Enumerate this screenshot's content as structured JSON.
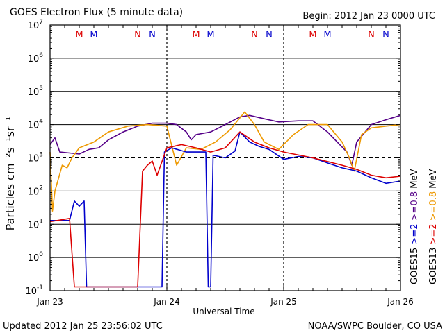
{
  "title": "GOES Electron Flux (5 minute data)",
  "begin_label": "Begin: 2012 Jan 23 0000 UTC",
  "updated_label": "Updated 2012 Jan 25 23:56:02 UTC",
  "credit_label": "NOAA/SWPC Boulder, CO USA",
  "chart_data": {
    "type": "line",
    "xlabel": "Universal Time",
    "ylabel": "Particles cm⁻²s⁻¹sr⁻¹",
    "x_range": [
      "2012-01-23T00:00",
      "2012-01-26T00:00"
    ],
    "x_ticks": [
      "Jan 23",
      "Jan 24",
      "Jan 25",
      "Jan 26"
    ],
    "y_scale": "log",
    "y_range": [
      0.1,
      10000000
    ],
    "y_ticks": [
      {
        "base": "10",
        "exp": "7"
      },
      {
        "base": "10",
        "exp": "6"
      },
      {
        "base": "10",
        "exp": "5"
      },
      {
        "base": "10",
        "exp": "4"
      },
      {
        "base": "10",
        "exp": "3"
      },
      {
        "base": "10",
        "exp": "2"
      },
      {
        "base": "10",
        "exp": "1"
      },
      {
        "base": "10",
        "exp": "0"
      },
      {
        "base": "10",
        "exp": "-1"
      }
    ],
    "grid": "horizontal",
    "threshold_line": 1000,
    "markers": [
      {
        "label": "M",
        "x": "2012-01-23T06:00",
        "color": "#dd0000"
      },
      {
        "label": "M",
        "x": "2012-01-23T09:00",
        "color": "#0000cc"
      },
      {
        "label": "N",
        "x": "2012-01-23T18:00",
        "color": "#dd0000"
      },
      {
        "label": "N",
        "x": "2012-01-23T21:00",
        "color": "#0000cc"
      },
      {
        "label": "M",
        "x": "2012-01-24T06:00",
        "color": "#dd0000"
      },
      {
        "label": "M",
        "x": "2012-01-24T09:00",
        "color": "#0000cc"
      },
      {
        "label": "N",
        "x": "2012-01-24T18:00",
        "color": "#dd0000"
      },
      {
        "label": "N",
        "x": "2012-01-24T21:00",
        "color": "#0000cc"
      },
      {
        "label": "M",
        "x": "2012-01-25T06:00",
        "color": "#dd0000"
      },
      {
        "label": "M",
        "x": "2012-01-25T09:00",
        "color": "#0000cc"
      },
      {
        "label": "N",
        "x": "2012-01-25T18:00",
        "color": "#dd0000"
      },
      {
        "label": "N",
        "x": "2012-01-25T21:00",
        "color": "#0000cc"
      }
    ],
    "right_legend": [
      {
        "text": "GOES15",
        "color": "#000000"
      },
      {
        "text": ">=2",
        "color": "#0000cc"
      },
      {
        "text": ">=0.8",
        "color": "#550088"
      },
      {
        "text": "MeV",
        "color": "#000000"
      },
      {
        "text": "GOES13",
        "color": "#000000"
      },
      {
        "text": ">=2",
        "color": "#dd0000"
      },
      {
        "text": ">=0.8",
        "color": "#ee9900"
      },
      {
        "text": "MeV",
        "color": "#000000"
      }
    ],
    "series": [
      {
        "name": "GOES15 >=0.8 MeV",
        "color": "#550088",
        "points": [
          [
            "2012-01-23T00:00",
            2500
          ],
          [
            "2012-01-23T01:00",
            4000
          ],
          [
            "2012-01-23T02:00",
            1500
          ],
          [
            "2012-01-23T04:00",
            1400
          ],
          [
            "2012-01-23T06:00",
            1300
          ],
          [
            "2012-01-23T08:00",
            1800
          ],
          [
            "2012-01-23T10:00",
            2000
          ],
          [
            "2012-01-23T12:00",
            3500
          ],
          [
            "2012-01-23T15:00",
            6000
          ],
          [
            "2012-01-23T18:00",
            9000
          ],
          [
            "2012-01-23T21:00",
            11000
          ],
          [
            "2012-01-24T00:00",
            11000
          ],
          [
            "2012-01-24T02:00",
            10000
          ],
          [
            "2012-01-24T04:00",
            6000
          ],
          [
            "2012-01-24T05:00",
            3500
          ],
          [
            "2012-01-24T06:00",
            5000
          ],
          [
            "2012-01-24T09:00",
            6000
          ],
          [
            "2012-01-24T12:00",
            10000
          ],
          [
            "2012-01-24T15:00",
            17000
          ],
          [
            "2012-01-24T17:00",
            19000
          ],
          [
            "2012-01-24T20:00",
            15000
          ],
          [
            "2012-01-24T23:00",
            12000
          ],
          [
            "2012-01-25T03:00",
            13000
          ],
          [
            "2012-01-25T06:00",
            13000
          ],
          [
            "2012-01-25T09:00",
            6000
          ],
          [
            "2012-01-25T11:00",
            3000
          ],
          [
            "2012-01-25T13:00",
            1500
          ],
          [
            "2012-01-25T14:00",
            600
          ],
          [
            "2012-01-25T15:00",
            3000
          ],
          [
            "2012-01-25T18:00",
            10000
          ],
          [
            "2012-01-25T21:00",
            14000
          ],
          [
            "2012-01-26T00:00",
            19000
          ]
        ]
      },
      {
        "name": "GOES13 >=0.8 MeV",
        "color": "#ee9900",
        "points": [
          [
            "2012-01-23T00:00",
            1500
          ],
          [
            "2012-01-23T00:30",
            25
          ],
          [
            "2012-01-23T01:00",
            100
          ],
          [
            "2012-01-23T02:30",
            600
          ],
          [
            "2012-01-23T03:30",
            500
          ],
          [
            "2012-01-23T04:30",
            1000
          ],
          [
            "2012-01-23T06:00",
            2000
          ],
          [
            "2012-01-23T09:00",
            3000
          ],
          [
            "2012-01-23T12:00",
            6000
          ],
          [
            "2012-01-23T16:00",
            9000
          ],
          [
            "2012-01-23T20:00",
            10000
          ],
          [
            "2012-01-24T00:00",
            9000
          ],
          [
            "2012-01-24T02:00",
            600
          ],
          [
            "2012-01-24T04:00",
            2000
          ],
          [
            "2012-01-24T07:00",
            1800
          ],
          [
            "2012-01-24T10:00",
            3000
          ],
          [
            "2012-01-24T13:00",
            7000
          ],
          [
            "2012-01-24T16:00",
            24000
          ],
          [
            "2012-01-24T18:00",
            10000
          ],
          [
            "2012-01-24T20:00",
            3000
          ],
          [
            "2012-01-24T23:00",
            1800
          ],
          [
            "2012-01-25T02:00",
            5000
          ],
          [
            "2012-01-25T05:00",
            10000
          ],
          [
            "2012-01-25T09:00",
            10000
          ],
          [
            "2012-01-25T12:00",
            3000
          ],
          [
            "2012-01-25T13:30",
            1000
          ],
          [
            "2012-01-25T14:30",
            400
          ],
          [
            "2012-01-25T16:00",
            5000
          ],
          [
            "2012-01-25T18:00",
            8000
          ],
          [
            "2012-01-25T21:00",
            9000
          ],
          [
            "2012-01-26T00:00",
            10000
          ]
        ]
      },
      {
        "name": "GOES15 >=2 MeV",
        "color": "#0000cc",
        "points": [
          [
            "2012-01-23T00:00",
            13
          ],
          [
            "2012-01-23T04:00",
            13
          ],
          [
            "2012-01-23T05:00",
            50
          ],
          [
            "2012-01-23T06:00",
            35
          ],
          [
            "2012-01-23T07:00",
            50
          ],
          [
            "2012-01-23T07:30",
            0.13
          ],
          [
            "2012-01-23T23:00",
            0.13
          ],
          [
            "2012-01-23T23:30",
            1500
          ],
          [
            "2012-01-24T01:00",
            2000
          ],
          [
            "2012-01-24T04:00",
            1500
          ],
          [
            "2012-01-24T08:00",
            1500
          ],
          [
            "2012-01-24T08:30",
            0.13
          ],
          [
            "2012-01-24T09:00",
            0.13
          ],
          [
            "2012-01-24T09:30",
            1200
          ],
          [
            "2012-01-24T12:00",
            1000
          ],
          [
            "2012-01-24T14:00",
            1600
          ],
          [
            "2012-01-24T15:00",
            6000
          ],
          [
            "2012-01-24T17:00",
            3000
          ],
          [
            "2012-01-24T19:00",
            2200
          ],
          [
            "2012-01-24T21:00",
            1800
          ],
          [
            "2012-01-25T00:00",
            900
          ],
          [
            "2012-01-25T03:00",
            1100
          ],
          [
            "2012-01-25T06:00",
            1000
          ],
          [
            "2012-01-25T09:00",
            700
          ],
          [
            "2012-01-25T12:00",
            500
          ],
          [
            "2012-01-25T15:00",
            400
          ],
          [
            "2012-01-25T18:00",
            250
          ],
          [
            "2012-01-25T21:00",
            170
          ],
          [
            "2012-01-26T00:00",
            200
          ]
        ]
      },
      {
        "name": "GOES13 >=2 MeV",
        "color": "#dd0000",
        "points": [
          [
            "2012-01-23T00:00",
            12
          ],
          [
            "2012-01-23T04:00",
            15
          ],
          [
            "2012-01-23T05:00",
            0.13
          ],
          [
            "2012-01-23T18:00",
            0.13
          ],
          [
            "2012-01-23T19:00",
            400
          ],
          [
            "2012-01-23T20:00",
            600
          ],
          [
            "2012-01-23T21:00",
            800
          ],
          [
            "2012-01-23T22:00",
            300
          ],
          [
            "2012-01-24T00:00",
            2000
          ],
          [
            "2012-01-24T03:00",
            2500
          ],
          [
            "2012-01-24T06:00",
            2000
          ],
          [
            "2012-01-24T09:00",
            1500
          ],
          [
            "2012-01-24T12:00",
            2000
          ],
          [
            "2012-01-24T15:00",
            6000
          ],
          [
            "2012-01-24T18:00",
            3000
          ],
          [
            "2012-01-24T21:00",
            2000
          ],
          [
            "2012-01-25T00:00",
            1500
          ],
          [
            "2012-01-25T06:00",
            1000
          ],
          [
            "2012-01-25T12:00",
            600
          ],
          [
            "2012-01-25T15:00",
            450
          ],
          [
            "2012-01-25T18:00",
            300
          ],
          [
            "2012-01-25T21:00",
            250
          ],
          [
            "2012-01-26T00:00",
            280
          ]
        ]
      }
    ]
  }
}
